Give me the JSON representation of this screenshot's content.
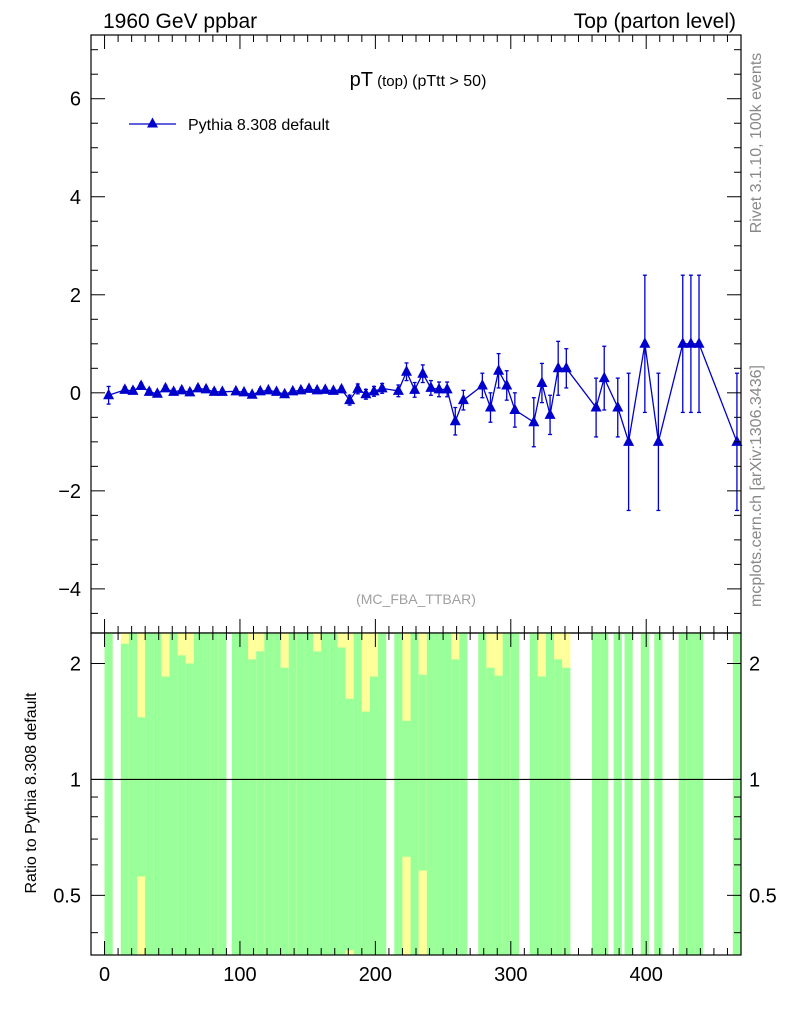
{
  "header": {
    "left": "1960 GeV ppbar",
    "right": "Top (parton level)"
  },
  "side_labels": {
    "rivet": "Rivet 3.1.10,  100k events",
    "mcplots": "mcplots.cern.ch [arXiv:1306.3436]"
  },
  "colors": {
    "series": "#0000cc",
    "band_inner": "#99ff99",
    "band_outer": "#ffff99",
    "subtitle_gray": "#a0a0a0"
  },
  "chart_data": [
    {
      "type": "line",
      "title_main": "pT",
      "title_sub1": " (top) ",
      "title_sub2": "(pTtt > 50)",
      "legend": "Pythia 8.308 default",
      "watermark": "(MC_FBA_TTBAR)",
      "xlim": [
        -10,
        470
      ],
      "ylim": [
        -4.9,
        7.3
      ],
      "yticks": [
        -4,
        -2,
        0,
        2,
        4,
        6
      ],
      "ytick_labels": [
        "−4",
        "−2",
        "0",
        "2",
        "4",
        "6"
      ],
      "series": [
        {
          "name": "Pythia 8.308 default",
          "x": [
            3,
            15,
            21,
            27,
            33,
            39,
            45,
            51,
            57,
            63,
            69,
            75,
            81,
            87,
            97,
            103,
            109,
            115,
            121,
            127,
            133,
            139,
            145,
            151,
            157,
            163,
            169,
            175,
            181,
            187,
            193,
            199,
            205,
            217,
            223,
            229,
            235,
            241,
            247,
            253,
            259,
            265,
            279,
            285,
            291,
            297,
            303,
            317,
            323,
            329,
            335,
            341,
            363,
            369,
            379,
            387,
            399,
            409,
            427,
            433,
            439,
            467
          ],
          "y": [
            -0.05,
            0.06,
            0.04,
            0.14,
            0.02,
            -0.02,
            0.09,
            0.02,
            0.05,
            0.01,
            0.09,
            0.07,
            0.02,
            0.02,
            0.03,
            0.01,
            -0.04,
            0.03,
            0.05,
            0.02,
            -0.03,
            0.03,
            0.05,
            0.08,
            0.05,
            0.06,
            0.04,
            0.07,
            -0.15,
            0.08,
            -0.03,
            0.03,
            0.09,
            0.04,
            0.43,
            0.06,
            0.39,
            0.1,
            0.07,
            0.07,
            -0.58,
            -0.15,
            0.15,
            -0.3,
            0.45,
            0.15,
            -0.35,
            -0.6,
            0.2,
            -0.45,
            0.5,
            0.5,
            -0.3,
            0.3,
            -0.3,
            -1.0,
            1.0,
            -1.0,
            1.0,
            1.0,
            1.0,
            -1.0
          ],
          "err": [
            0.18,
            0.06,
            0.06,
            0.06,
            0.06,
            0.05,
            0.06,
            0.06,
            0.06,
            0.06,
            0.06,
            0.06,
            0.06,
            0.05,
            0.05,
            0.05,
            0.05,
            0.05,
            0.05,
            0.05,
            0.05,
            0.05,
            0.05,
            0.05,
            0.05,
            0.05,
            0.05,
            0.06,
            0.1,
            0.1,
            0.1,
            0.1,
            0.1,
            0.12,
            0.18,
            0.15,
            0.18,
            0.15,
            0.15,
            0.15,
            0.28,
            0.2,
            0.25,
            0.3,
            0.35,
            0.3,
            0.35,
            0.5,
            0.4,
            0.4,
            0.55,
            0.4,
            0.6,
            0.65,
            0.6,
            1.4,
            1.4,
            1.4,
            1.4,
            1.4,
            1.4,
            1.4
          ]
        }
      ]
    },
    {
      "type": "area",
      "ylabel": "Ratio to Pythia 8.308 default",
      "xlim": [
        -10,
        470
      ],
      "ylim": [
        0.35,
        2.4
      ],
      "yscale": "log",
      "yticks": [
        0.5,
        1,
        2
      ],
      "ytick_labels": [
        "0.5",
        "1",
        "2"
      ],
      "xticks": [
        0,
        100,
        200,
        300,
        400
      ],
      "xtick_labels": [
        "0",
        "100",
        "200",
        "300",
        "400"
      ],
      "reference_line": 1,
      "bands": {
        "centers": [
          3,
          15,
          21,
          27,
          33,
          39,
          45,
          51,
          57,
          63,
          69,
          75,
          81,
          87,
          97,
          103,
          109,
          115,
          121,
          127,
          133,
          139,
          145,
          151,
          157,
          163,
          169,
          175,
          181,
          187,
          193,
          199,
          205,
          217,
          223,
          229,
          235,
          241,
          247,
          253,
          259,
          265,
          279,
          285,
          291,
          297,
          303,
          317,
          323,
          329,
          335,
          341,
          363,
          369,
          379,
          387,
          399,
          409,
          427,
          433,
          439,
          467
        ],
        "inner_hi": [
          2.4,
          2.25,
          2.4,
          1.45,
          2.4,
          2.4,
          1.85,
          2.4,
          2.1,
          2.0,
          2.4,
          2.4,
          2.4,
          2.4,
          2.4,
          2.4,
          2.05,
          2.15,
          2.4,
          2.4,
          1.95,
          2.4,
          2.4,
          2.4,
          2.15,
          2.4,
          2.4,
          2.2,
          1.62,
          2.4,
          1.5,
          1.85,
          2.4,
          2.4,
          1.42,
          2.4,
          1.87,
          2.4,
          2.4,
          2.4,
          2.05,
          2.4,
          2.4,
          1.95,
          1.86,
          2.4,
          2.4,
          2.4,
          1.85,
          2.4,
          2.05,
          1.95,
          2.4,
          2.4,
          2.4,
          2.4,
          2.4,
          2.4,
          2.4,
          2.4,
          2.4,
          2.4
        ],
        "inner_lo": [
          0.35,
          0.35,
          0.35,
          0.56,
          0.35,
          0.35,
          0.35,
          0.35,
          0.35,
          0.35,
          0.35,
          0.35,
          0.35,
          0.35,
          0.35,
          0.35,
          0.35,
          0.35,
          0.35,
          0.35,
          0.35,
          0.35,
          0.35,
          0.35,
          0.35,
          0.35,
          0.35,
          0.35,
          0.36,
          0.35,
          0.35,
          0.35,
          0.35,
          0.35,
          0.63,
          0.35,
          0.58,
          0.35,
          0.35,
          0.35,
          0.35,
          0.35,
          0.35,
          0.35,
          0.35,
          0.35,
          0.35,
          0.35,
          0.35,
          0.35,
          0.35,
          0.35,
          0.35,
          0.35,
          0.35,
          0.35,
          0.35,
          0.35,
          0.35,
          0.35,
          0.35,
          0.35
        ],
        "outer_hi": [
          2.4,
          2.4,
          2.4,
          2.4,
          2.4,
          2.4,
          2.4,
          2.4,
          2.4,
          2.4,
          2.4,
          2.4,
          2.4,
          2.4,
          2.4,
          2.4,
          2.4,
          2.4,
          2.4,
          2.4,
          2.4,
          2.4,
          2.4,
          2.4,
          2.4,
          2.4,
          2.4,
          2.4,
          2.4,
          2.4,
          2.4,
          2.4,
          2.4,
          2.4,
          2.4,
          2.4,
          2.4,
          2.4,
          2.4,
          2.4,
          2.4,
          2.4,
          2.4,
          2.4,
          2.4,
          2.4,
          2.4,
          2.4,
          2.4,
          2.4,
          2.4,
          2.4,
          2.4,
          2.4,
          2.4,
          2.4,
          2.4,
          2.4,
          2.4,
          2.4,
          2.4,
          2.4
        ],
        "outer_lo": [
          0.35,
          0.35,
          0.35,
          0.35,
          0.35,
          0.35,
          0.35,
          0.35,
          0.35,
          0.35,
          0.35,
          0.35,
          0.35,
          0.35,
          0.35,
          0.35,
          0.35,
          0.35,
          0.35,
          0.35,
          0.35,
          0.35,
          0.35,
          0.35,
          0.35,
          0.35,
          0.35,
          0.35,
          0.35,
          0.35,
          0.35,
          0.35,
          0.35,
          0.35,
          0.35,
          0.35,
          0.35,
          0.35,
          0.35,
          0.35,
          0.35,
          0.35,
          0.35,
          0.35,
          0.35,
          0.35,
          0.35,
          0.35,
          0.35,
          0.35,
          0.35,
          0.35,
          0.35,
          0.35,
          0.35,
          0.35,
          0.35,
          0.35,
          0.35,
          0.35,
          0.35,
          0.35
        ]
      }
    }
  ]
}
